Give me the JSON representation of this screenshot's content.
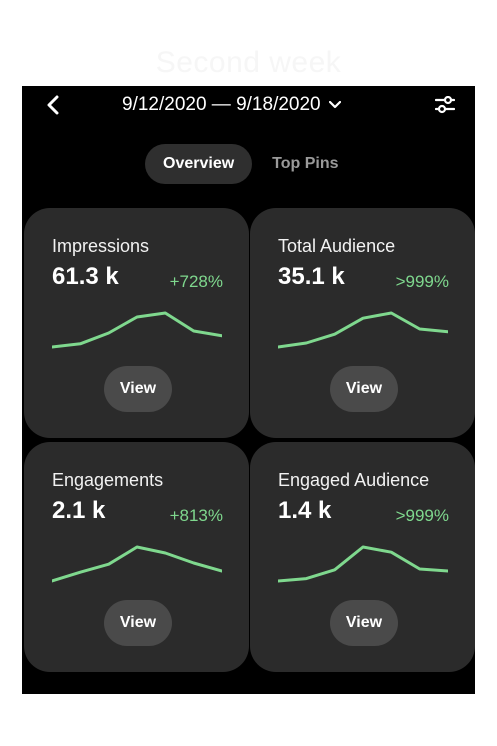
{
  "watermark": "Second week",
  "header": {
    "date_range": "9/12/2020 — 9/18/2020",
    "back_icon": "chevron-left-icon",
    "dropdown_icon": "chevron-down-icon",
    "filter_icon": "sliders-icon"
  },
  "tabs": [
    {
      "label": "Overview",
      "active": true
    },
    {
      "label": "Top Pins",
      "active": false
    }
  ],
  "colors": {
    "accent_green": "#7fd88e",
    "card_bg": "#2b2b2b",
    "screen_bg": "#000000"
  },
  "cards": [
    {
      "title": "Impressions",
      "value": "61.3 k",
      "change": "+728%",
      "trend": [
        0.1,
        0.18,
        0.45,
        0.85,
        0.95,
        0.5,
        0.38
      ],
      "view_label": "View"
    },
    {
      "title": "Total Audience",
      "value": "35.1 k",
      "change": ">999%",
      "trend": [
        0.1,
        0.2,
        0.42,
        0.82,
        0.95,
        0.55,
        0.48
      ],
      "view_label": "View"
    },
    {
      "title": "Engagements",
      "value": "2.1 k",
      "change": "+813%",
      "trend": [
        0.1,
        0.32,
        0.52,
        0.95,
        0.8,
        0.55,
        0.35
      ],
      "view_label": "View"
    },
    {
      "title": "Engaged Audience",
      "value": "1.4 k",
      "change": ">999%",
      "trend": [
        0.1,
        0.16,
        0.38,
        0.95,
        0.82,
        0.4,
        0.35
      ],
      "view_label": "View"
    }
  ]
}
